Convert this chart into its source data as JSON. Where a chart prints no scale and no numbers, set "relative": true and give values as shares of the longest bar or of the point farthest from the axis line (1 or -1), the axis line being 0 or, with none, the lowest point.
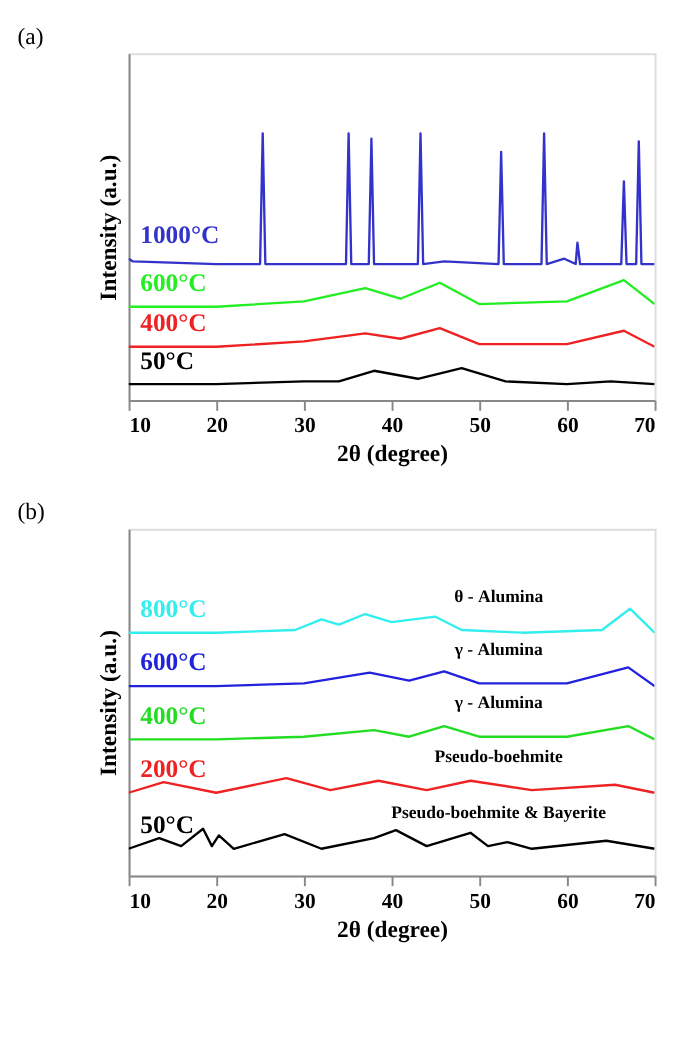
{
  "chart_data": [
    {
      "type": "line",
      "title": "(a)",
      "xlabel": "2θ (degree)",
      "ylabel": "Intensity (a.u.)",
      "relative": true,
      "xlim": [
        10,
        70
      ],
      "xticks": [
        10,
        20,
        30,
        40,
        50,
        60,
        70
      ],
      "grid": false,
      "legend": false,
      "tick_labels": "x",
      "series": [
        {
          "name": "1000°C",
          "color": "#3333cc",
          "x": [
            10,
            10.5,
            20,
            25,
            25.3,
            25.6,
            34.8,
            35.1,
            35.4,
            37.4,
            37.7,
            38,
            43,
            43.3,
            43.6,
            46,
            52.2,
            52.5,
            52.8,
            57.1,
            57.4,
            57.7,
            59.7,
            61,
            61.2,
            61.5,
            66.2,
            66.5,
            66.8,
            67.9,
            68.2,
            68.5,
            70
          ],
          "values": [
            0.53,
            0.52,
            0.51,
            0.51,
            1.0,
            0.51,
            0.51,
            1.0,
            0.51,
            0.51,
            0.98,
            0.51,
            0.51,
            1.0,
            0.51,
            0.52,
            0.51,
            0.93,
            0.51,
            0.51,
            1.0,
            0.51,
            0.53,
            0.51,
            0.59,
            0.51,
            0.51,
            0.82,
            0.51,
            0.51,
            0.97,
            0.51,
            0.51
          ]
        },
        {
          "name": "600°C",
          "color": "#22ee22",
          "x": [
            10,
            20,
            30,
            37,
            41,
            45.5,
            50,
            60,
            66.5,
            70
          ],
          "values": [
            0.35,
            0.35,
            0.37,
            0.42,
            0.38,
            0.44,
            0.36,
            0.37,
            0.45,
            0.36
          ]
        },
        {
          "name": "400°C",
          "color": "#ee2222",
          "x": [
            10,
            20,
            30,
            37,
            41,
            45.5,
            50,
            60,
            66.5,
            70
          ],
          "values": [
            0.2,
            0.2,
            0.22,
            0.25,
            0.23,
            0.27,
            0.21,
            0.21,
            0.26,
            0.2
          ]
        },
        {
          "name": "50°C",
          "color": "#000000",
          "x": [
            10,
            20,
            30,
            34,
            38,
            43,
            48,
            53,
            60,
            65,
            70
          ],
          "values": [
            0.06,
            0.06,
            0.07,
            0.07,
            0.11,
            0.08,
            0.12,
            0.07,
            0.06,
            0.07,
            0.06
          ]
        }
      ]
    },
    {
      "type": "line",
      "title": "(b)",
      "xlabel": "2θ (degree)",
      "ylabel": "Intensity (a.u.)",
      "relative": true,
      "xlim": [
        10,
        70
      ],
      "xticks": [
        10,
        20,
        30,
        40,
        50,
        60,
        70
      ],
      "grid": false,
      "legend": false,
      "tick_labels": "x",
      "annotations": [
        "θ - Alumina",
        "γ - Alumina",
        "γ - Alumina",
        "Pseudo-boehmite",
        "Pseudo-boehmite & Bayerite"
      ],
      "series": [
        {
          "name": "800°C",
          "color": "#33eeee",
          "x": [
            10,
            20,
            29,
            32,
            34,
            37,
            40,
            45,
            48,
            55,
            64,
            67.2,
            70
          ],
          "values": [
            0.91,
            0.91,
            0.92,
            0.96,
            0.94,
            0.98,
            0.95,
            0.97,
            0.92,
            0.91,
            0.92,
            1.0,
            0.91
          ]
        },
        {
          "name": "600°C",
          "color": "#2222dd",
          "x": [
            10,
            20,
            30,
            37.5,
            42,
            46,
            50,
            60,
            67,
            70
          ],
          "values": [
            0.71,
            0.71,
            0.72,
            0.76,
            0.73,
            0.765,
            0.72,
            0.72,
            0.78,
            0.71
          ]
        },
        {
          "name": "400°C",
          "color": "#22dd22",
          "x": [
            10,
            20,
            30,
            38,
            42,
            46,
            50,
            60,
            67,
            70
          ],
          "values": [
            0.51,
            0.51,
            0.52,
            0.545,
            0.52,
            0.56,
            0.52,
            0.52,
            0.56,
            0.51
          ]
        },
        {
          "name": "200°C",
          "color": "#ee2222",
          "x": [
            10,
            14,
            20,
            28,
            33,
            38.5,
            44,
            49,
            56,
            65.5,
            70
          ],
          "values": [
            0.31,
            0.35,
            0.31,
            0.365,
            0.32,
            0.355,
            0.32,
            0.355,
            0.32,
            0.34,
            0.31
          ]
        },
        {
          "name": "50°C",
          "color": "#000000",
          "x": [
            10,
            13.5,
            16,
            18.5,
            19.5,
            20.3,
            22,
            27.8,
            32,
            38,
            40.5,
            44,
            49,
            51,
            53.2,
            56,
            64.5,
            70
          ],
          "values": [
            0.1,
            0.14,
            0.11,
            0.175,
            0.11,
            0.15,
            0.1,
            0.155,
            0.1,
            0.14,
            0.17,
            0.11,
            0.16,
            0.11,
            0.125,
            0.1,
            0.13,
            0.1
          ]
        }
      ]
    }
  ]
}
